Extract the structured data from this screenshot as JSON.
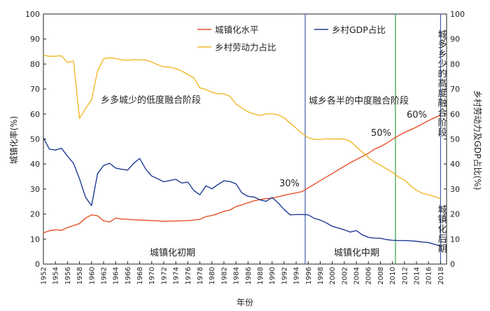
{
  "chart_data": {
    "type": "line",
    "xlabel": "年份",
    "ylabel_left": "城镇化率(%)",
    "ylabel_right": "乡村劳动力及GDP占比(%)",
    "xlim": [
      1952,
      2019
    ],
    "ylim": [
      0,
      100
    ],
    "x_ticks": [
      "1952",
      "1954",
      "1956",
      "1958",
      "1960",
      "1962",
      "1964",
      "1966",
      "1968",
      "1970",
      "1972",
      "1974",
      "1976",
      "1978",
      "1980",
      "1982",
      "1984",
      "1986",
      "1988",
      "1990",
      "1992",
      "1994",
      "1996",
      "1998",
      "2000",
      "2002",
      "2004",
      "2006",
      "2008",
      "2010",
      "2012",
      "2014",
      "2016",
      "2018"
    ],
    "y_ticks": [
      "0",
      "10",
      "20",
      "30",
      "40",
      "50",
      "60",
      "70",
      "80",
      "90",
      "100"
    ],
    "legend": [
      {
        "name": "城镇化水平",
        "color": "#e8502a"
      },
      {
        "name": "乡村GDP占比",
        "color": "#1f3a93"
      },
      {
        "name": "乡村劳动力占比",
        "color": "#f0b828"
      }
    ],
    "series": [
      {
        "name": "城镇化水平",
        "color": "#e8502a",
        "points": [
          [
            1952,
            12.5
          ],
          [
            1953,
            13.3
          ],
          [
            1954,
            13.7
          ],
          [
            1955,
            13.5
          ],
          [
            1956,
            14.6
          ],
          [
            1957,
            15.4
          ],
          [
            1958,
            16.2
          ],
          [
            1959,
            18.4
          ],
          [
            1960,
            19.7
          ],
          [
            1961,
            19.3
          ],
          [
            1962,
            17.3
          ],
          [
            1963,
            16.8
          ],
          [
            1964,
            18.4
          ],
          [
            1965,
            18.0
          ],
          [
            1966,
            17.9
          ],
          [
            1967,
            17.7
          ],
          [
            1968,
            17.6
          ],
          [
            1969,
            17.5
          ],
          [
            1970,
            17.4
          ],
          [
            1971,
            17.3
          ],
          [
            1972,
            17.1
          ],
          [
            1973,
            17.2
          ],
          [
            1974,
            17.2
          ],
          [
            1975,
            17.3
          ],
          [
            1976,
            17.4
          ],
          [
            1977,
            17.6
          ],
          [
            1978,
            17.9
          ],
          [
            1979,
            19.0
          ],
          [
            1980,
            19.4
          ],
          [
            1981,
            20.2
          ],
          [
            1982,
            21.1
          ],
          [
            1983,
            21.6
          ],
          [
            1984,
            23.0
          ],
          [
            1985,
            23.7
          ],
          [
            1986,
            24.5
          ],
          [
            1987,
            25.3
          ],
          [
            1988,
            25.8
          ],
          [
            1989,
            26.2
          ],
          [
            1990,
            26.4
          ],
          [
            1991,
            26.9
          ],
          [
            1992,
            27.5
          ],
          [
            1993,
            28.0
          ],
          [
            1994,
            28.5
          ],
          [
            1995,
            29.0
          ],
          [
            1996,
            30.5
          ],
          [
            1997,
            31.9
          ],
          [
            1998,
            33.4
          ],
          [
            1999,
            34.8
          ],
          [
            2000,
            36.2
          ],
          [
            2001,
            37.7
          ],
          [
            2002,
            39.1
          ],
          [
            2003,
            40.5
          ],
          [
            2004,
            41.8
          ],
          [
            2005,
            43.0
          ],
          [
            2006,
            44.3
          ],
          [
            2007,
            45.9
          ],
          [
            2008,
            47.0
          ],
          [
            2009,
            48.3
          ],
          [
            2010,
            49.9
          ],
          [
            2011,
            51.3
          ],
          [
            2012,
            52.6
          ],
          [
            2013,
            53.7
          ],
          [
            2014,
            54.8
          ],
          [
            2015,
            56.1
          ],
          [
            2016,
            57.4
          ],
          [
            2017,
            58.5
          ],
          [
            2018,
            59.6
          ]
        ]
      },
      {
        "name": "乡村GDP占比",
        "color": "#1f3a93",
        "points": [
          [
            1952,
            50.5
          ],
          [
            1953,
            45.9
          ],
          [
            1954,
            45.6
          ],
          [
            1955,
            46.3
          ],
          [
            1956,
            43.2
          ],
          [
            1957,
            40.3
          ],
          [
            1958,
            34.1
          ],
          [
            1959,
            26.7
          ],
          [
            1960,
            23.4
          ],
          [
            1961,
            36.2
          ],
          [
            1962,
            39.4
          ],
          [
            1963,
            40.3
          ],
          [
            1964,
            38.4
          ],
          [
            1965,
            37.9
          ],
          [
            1966,
            37.6
          ],
          [
            1967,
            40.3
          ],
          [
            1968,
            42.2
          ],
          [
            1969,
            38.0
          ],
          [
            1970,
            35.2
          ],
          [
            1971,
            34.1
          ],
          [
            1972,
            32.9
          ],
          [
            1973,
            33.4
          ],
          [
            1974,
            33.9
          ],
          [
            1975,
            32.4
          ],
          [
            1976,
            32.8
          ],
          [
            1977,
            29.4
          ],
          [
            1978,
            27.7
          ],
          [
            1979,
            31.3
          ],
          [
            1980,
            30.1
          ],
          [
            1981,
            31.8
          ],
          [
            1982,
            33.3
          ],
          [
            1983,
            33.0
          ],
          [
            1984,
            32.1
          ],
          [
            1985,
            28.4
          ],
          [
            1986,
            27.1
          ],
          [
            1987,
            26.8
          ],
          [
            1988,
            25.7
          ],
          [
            1989,
            25.1
          ],
          [
            1990,
            26.6
          ],
          [
            1991,
            24.5
          ],
          [
            1992,
            21.8
          ],
          [
            1993,
            19.7
          ],
          [
            1994,
            19.8
          ],
          [
            1995,
            19.8
          ],
          [
            1996,
            19.7
          ],
          [
            1997,
            18.3
          ],
          [
            1998,
            17.6
          ],
          [
            1999,
            16.5
          ],
          [
            2000,
            15.1
          ],
          [
            2001,
            14.4
          ],
          [
            2002,
            13.7
          ],
          [
            2003,
            12.8
          ],
          [
            2004,
            13.4
          ],
          [
            2005,
            11.7
          ],
          [
            2006,
            10.7
          ],
          [
            2007,
            10.4
          ],
          [
            2008,
            10.3
          ],
          [
            2009,
            9.8
          ],
          [
            2010,
            9.5
          ],
          [
            2011,
            9.4
          ],
          [
            2012,
            9.4
          ],
          [
            2013,
            9.3
          ],
          [
            2014,
            9.1
          ],
          [
            2015,
            8.8
          ],
          [
            2016,
            8.6
          ],
          [
            2017,
            7.9
          ],
          [
            2018,
            7.2
          ]
        ]
      },
      {
        "name": "乡村劳动力占比",
        "color": "#f0b828",
        "points": [
          [
            1952,
            83.5
          ],
          [
            1953,
            83.1
          ],
          [
            1954,
            83.1
          ],
          [
            1955,
            83.3
          ],
          [
            1956,
            80.6
          ],
          [
            1957,
            81.2
          ],
          [
            1958,
            58.2
          ],
          [
            1959,
            62.2
          ],
          [
            1960,
            65.7
          ],
          [
            1961,
            77.2
          ],
          [
            1962,
            82.1
          ],
          [
            1963,
            82.5
          ],
          [
            1964,
            82.2
          ],
          [
            1965,
            81.6
          ],
          [
            1966,
            81.5
          ],
          [
            1967,
            81.7
          ],
          [
            1968,
            81.7
          ],
          [
            1969,
            81.6
          ],
          [
            1970,
            80.8
          ],
          [
            1971,
            79.7
          ],
          [
            1972,
            78.9
          ],
          [
            1973,
            78.7
          ],
          [
            1974,
            78.2
          ],
          [
            1975,
            77.2
          ],
          [
            1976,
            75.8
          ],
          [
            1977,
            74.5
          ],
          [
            1978,
            70.5
          ],
          [
            1979,
            69.8
          ],
          [
            1980,
            68.7
          ],
          [
            1981,
            68.1
          ],
          [
            1982,
            68.1
          ],
          [
            1983,
            67.1
          ],
          [
            1984,
            64.0
          ],
          [
            1985,
            62.4
          ],
          [
            1986,
            60.9
          ],
          [
            1987,
            60.0
          ],
          [
            1988,
            59.4
          ],
          [
            1989,
            60.1
          ],
          [
            1990,
            60.1
          ],
          [
            1991,
            59.7
          ],
          [
            1992,
            58.5
          ],
          [
            1993,
            56.4
          ],
          [
            1994,
            54.3
          ],
          [
            1995,
            52.2
          ],
          [
            1996,
            50.5
          ],
          [
            1997,
            49.9
          ],
          [
            1998,
            49.8
          ],
          [
            1999,
            50.1
          ],
          [
            2000,
            50.0
          ],
          [
            2001,
            50.0
          ],
          [
            2002,
            50.0
          ],
          [
            2003,
            49.1
          ],
          [
            2004,
            46.9
          ],
          [
            2005,
            44.8
          ],
          [
            2006,
            42.6
          ],
          [
            2007,
            40.8
          ],
          [
            2008,
            39.6
          ],
          [
            2009,
            38.1
          ],
          [
            2010,
            36.7
          ],
          [
            2011,
            34.8
          ],
          [
            2012,
            33.6
          ],
          [
            2013,
            31.4
          ],
          [
            2014,
            29.5
          ],
          [
            2015,
            28.3
          ],
          [
            2016,
            27.7
          ],
          [
            2017,
            27.0
          ],
          [
            2018,
            26.1
          ]
        ]
      }
    ],
    "period_lines": [
      {
        "x": 1995.5,
        "color": "#3f5fb0"
      },
      {
        "x": 2010.5,
        "color": "#2e9e3a"
      },
      {
        "x": 2018.0,
        "color": "#3f5fb0"
      }
    ],
    "annotations": {
      "stage_early": "乡多城少的低度融合阶段",
      "stage_mid": "城乡各半的中度融合阶段",
      "stage_late": "城多乡少的高度融合阶段",
      "pct30": "30%",
      "pct50": "50%",
      "pct60": "60%",
      "period_early": "城镇化初期",
      "period_mid": "城镇化中期",
      "period_late": "城镇化后期"
    }
  }
}
